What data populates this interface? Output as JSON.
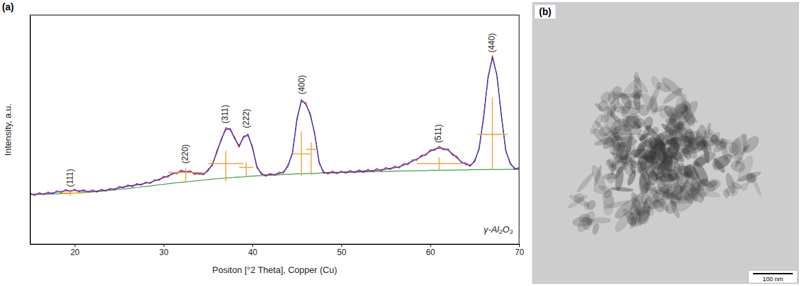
{
  "chart_data": {
    "type": "line",
    "panel_label": "(a)",
    "x_label": "Positon [°2 Theta], Copper (Cu)",
    "y_label": "Intensity, a.u.",
    "xlim": [
      15,
      70
    ],
    "xticks": [
      20,
      30,
      40,
      50,
      60,
      70
    ],
    "ylim": [
      0,
      100
    ],
    "yticks": [],
    "tick_labels": "x",
    "grid": false,
    "x": [
      15,
      15.5,
      16,
      16.5,
      17,
      17.5,
      18,
      18.5,
      19,
      19.5,
      20,
      20.5,
      21,
      21.5,
      22,
      22.5,
      23,
      23.5,
      24,
      24.5,
      25,
      25.5,
      26,
      26.5,
      27,
      27.5,
      28,
      28.5,
      29,
      29.5,
      30,
      30.5,
      31,
      31.5,
      32,
      32.5,
      33,
      33.5,
      34,
      34.5,
      35,
      35.5,
      36,
      36.5,
      37,
      37.5,
      38,
      38.5,
      39,
      39.5,
      40,
      40.5,
      41,
      41.5,
      42,
      42.5,
      43,
      43.5,
      44,
      44.5,
      45,
      45.5,
      46,
      46.5,
      47,
      47.5,
      48,
      48.5,
      49,
      49.5,
      50,
      50.5,
      51,
      51.5,
      52,
      52.5,
      53,
      53.5,
      54,
      54.5,
      55,
      55.5,
      56,
      56.5,
      57,
      57.5,
      58,
      58.5,
      59,
      59.5,
      60,
      60.5,
      61,
      61.5,
      62,
      62.5,
      63,
      63.5,
      64,
      64.5,
      65,
      65.5,
      66,
      66.5,
      67,
      67.5,
      68,
      68.5,
      69,
      69.5,
      70
    ],
    "series": [
      {
        "color": "#e8101a",
        "type": "line",
        "values": [
          22.3,
          21.2,
          22.5,
          21.6,
          22.8,
          21.9,
          23.3,
          22.5,
          23.9,
          22.8,
          24.0,
          22.8,
          23.8,
          22.6,
          23.7,
          22.7,
          24.0,
          23.1,
          24.4,
          23.7,
          25.2,
          24.5,
          25.9,
          25.0,
          26.5,
          25.7,
          27.2,
          26.4,
          28.2,
          27.8,
          29.6,
          29.2,
          31.3,
          30.7,
          32.4,
          31.2,
          32.1,
          30.4,
          31.2,
          30.2,
          32.7,
          34.3,
          40.8,
          45.3,
          50.9,
          49.8,
          46.7,
          42.3,
          47.2,
          47.3,
          42.8,
          33.3,
          31.2,
          29.6,
          30.9,
          29.9,
          31.5,
          31.0,
          34.7,
          39.3,
          54.9,
          62.2,
          61.8,
          56.2,
          48.8,
          35.3,
          31.7,
          30.6,
          32.0,
          30.7,
          32.0,
          30.9,
          32.3,
          31.1,
          32.5,
          31.3,
          32.7,
          31.5,
          33.0,
          31.9,
          33.5,
          32.5,
          34.1,
          33.2,
          35.2,
          34.7,
          36.9,
          36.6,
          38.9,
          38.7,
          41.2,
          40.9,
          42.8,
          41.1,
          41.7,
          38.8,
          38.4,
          35.4,
          35.5,
          33.9,
          36.7,
          41.3,
          55.9,
          72.2,
          82.3,
          73.3,
          56.8,
          40.4,
          35.7,
          32.6,
          33.5
        ]
      },
      {
        "color": "#3b3bc8",
        "type": "line",
        "values": [
          21.7,
          21.8,
          21.9,
          22.0,
          22.2,
          22.4,
          22.7,
          23.0,
          23.3,
          23.4,
          23.4,
          23.3,
          23.2,
          23.1,
          23.1,
          23.2,
          23.4,
          23.6,
          23.9,
          24.2,
          24.6,
          25.0,
          25.3,
          25.6,
          25.9,
          26.2,
          26.6,
          27.0,
          27.6,
          28.3,
          29.0,
          29.8,
          30.6,
          31.3,
          31.7,
          31.8,
          31.5,
          31.0,
          30.6,
          30.7,
          32.0,
          35.0,
          40.0,
          46.0,
          50.0,
          50.5,
          46.0,
          43.0,
          46.5,
          48.0,
          42.0,
          34.0,
          30.5,
          30.2,
          30.3,
          30.5,
          30.8,
          31.6,
          34.0,
          40.0,
          54.0,
          63.0,
          61.0,
          57.0,
          48.0,
          36.0,
          31.0,
          31.3,
          31.3,
          31.3,
          31.4,
          31.5,
          31.6,
          31.7,
          31.8,
          31.9,
          32.0,
          32.1,
          32.3,
          32.5,
          32.8,
          33.1,
          33.4,
          33.8,
          34.5,
          35.3,
          36.2,
          37.2,
          38.2,
          39.3,
          40.5,
          41.5,
          42.0,
          41.8,
          41.0,
          39.5,
          37.7,
          36.0,
          34.8,
          34.5,
          36.0,
          42.0,
          55.0,
          73.0,
          81.5,
          74.0,
          56.0,
          41.0,
          35.0,
          33.2,
          32.8
        ]
      },
      {
        "color": "#3aa040",
        "type": "line",
        "values": [
          21.7,
          21.7,
          21.7,
          21.8,
          21.8,
          21.9,
          21.9,
          22.0,
          22.1,
          22.2,
          22.3,
          22.4,
          22.5,
          22.6,
          22.8,
          22.9,
          23.1,
          23.3,
          23.5,
          23.7,
          23.9,
          24.1,
          24.3,
          24.5,
          24.7,
          25.0,
          25.2,
          25.4,
          25.7,
          25.9,
          26.1,
          26.4,
          26.6,
          26.8,
          27.0,
          27.2,
          27.4,
          27.6,
          27.8,
          28.0,
          28.2,
          28.4,
          28.6,
          28.7,
          28.9,
          29.0,
          29.2,
          29.3,
          29.4,
          29.6,
          29.7,
          29.8,
          29.9,
          30.0,
          30.1,
          30.2,
          30.3,
          30.4,
          30.5,
          30.6,
          30.7,
          30.7,
          30.8,
          30.9,
          30.9,
          31.0,
          31.1,
          31.1,
          31.2,
          31.2,
          31.3,
          31.3,
          31.4,
          31.4,
          31.5,
          31.5,
          31.6,
          31.6,
          31.7,
          31.7,
          31.8,
          31.8,
          31.9,
          31.9,
          32.0,
          32.0,
          32.0,
          32.1,
          32.1,
          32.1,
          32.2,
          32.2,
          32.2,
          32.3,
          32.3,
          32.3,
          32.4,
          32.4,
          32.4,
          32.5,
          32.5,
          32.5,
          32.5,
          32.6,
          32.6,
          32.6,
          32.6,
          32.7,
          32.7,
          32.7,
          32.7
        ]
      }
    ],
    "peak_markers": [
      {
        "x": 19.5,
        "y_top": 23.7,
        "y_bar": 22.3,
        "y_bottom": 21.1,
        "width": 2.5
      },
      {
        "x": 32.5,
        "y_top": 33.0,
        "y_bar": 31.3,
        "y_bottom": 26.8,
        "width": 4
      },
      {
        "x": 37,
        "y_top": 40.8,
        "y_bar": 35.2,
        "y_bottom": 27.3,
        "width": 4
      },
      {
        "x": 39.3,
        "y_top": 35.8,
        "y_bar": 33.5,
        "y_bottom": 29.3,
        "width": 1.6
      },
      {
        "x": 45.5,
        "y_top": 49.3,
        "y_bar": 39.4,
        "y_bottom": 29.6,
        "width": 2
      },
      {
        "x": 46.6,
        "y_top": 44.5,
        "y_bar": 41.4,
        "y_bottom": 30.1,
        "width": 1.2
      },
      {
        "x": 61,
        "y_top": 38.0,
        "y_bar": 35.2,
        "y_bottom": 31.8,
        "width": 5
      },
      {
        "x": 67,
        "y_top": 63.9,
        "y_bar": 47.9,
        "y_bottom": 32.4,
        "width": 3.4
      }
    ],
    "peak_labels": [
      {
        "text": "(111)",
        "x": 19.5,
        "y": 25
      },
      {
        "text": "(220)",
        "x": 32.5,
        "y": 35.2
      },
      {
        "text": "(311)",
        "x": 37,
        "y": 52.7
      },
      {
        "text": "(222)",
        "x": 39.4,
        "y": 50.7
      },
      {
        "text": "(400)",
        "x": 45.6,
        "y": 65.4
      },
      {
        "text": "(511)",
        "x": 61,
        "y": 44.2
      },
      {
        "text": "(440)",
        "x": 67,
        "y": 83.7
      }
    ],
    "annotations": [
      {
        "text": "γ-Al₂O₃",
        "x": 69.3,
        "y": 5
      }
    ]
  },
  "image_panel": {
    "label": "(b)",
    "scale_bar": "100 nm"
  }
}
